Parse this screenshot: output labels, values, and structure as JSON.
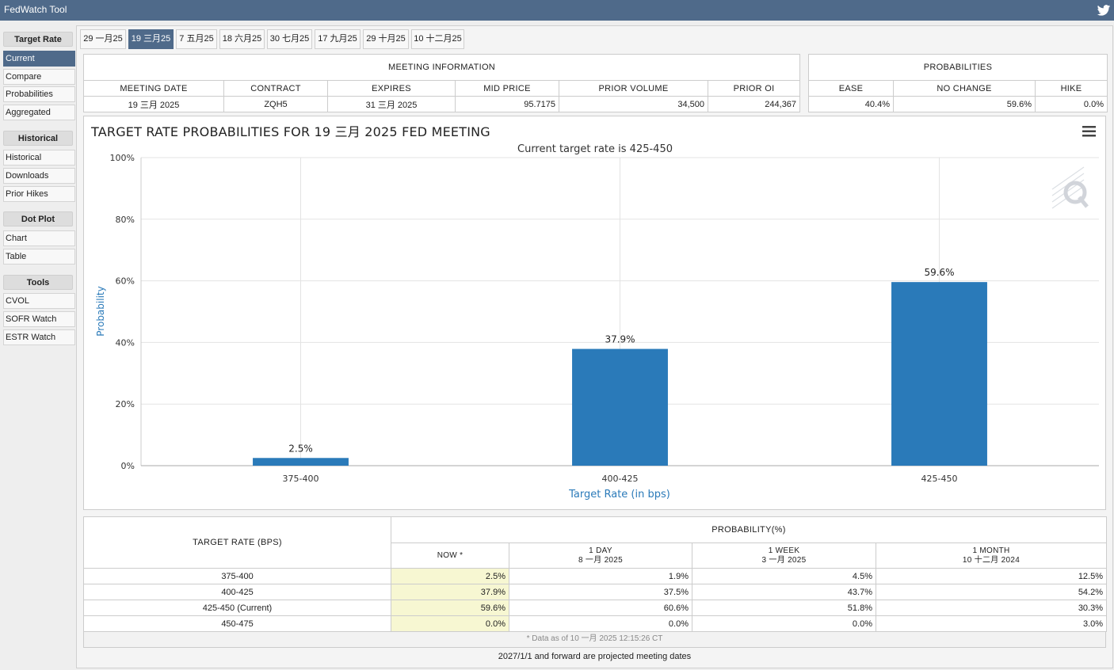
{
  "app": {
    "title": "FedWatch Tool"
  },
  "sidebar": {
    "groups": [
      {
        "title": "Target Rate",
        "items": [
          "Current",
          "Compare",
          "Probabilities",
          "Aggregated"
        ]
      },
      {
        "title": "Historical",
        "items": [
          "Historical",
          "Downloads",
          "Prior Hikes"
        ]
      },
      {
        "title": "Dot Plot",
        "items": [
          "Chart",
          "Table"
        ]
      },
      {
        "title": "Tools",
        "items": [
          "CVOL",
          "SOFR Watch",
          "ESTR Watch"
        ]
      }
    ],
    "active_item": "Current"
  },
  "tabs": [
    "29 一月25",
    "19 三月25",
    "7 五月25",
    "18 六月25",
    "30 七月25",
    "17 九月25",
    "29 十月25",
    "10 十二月25"
  ],
  "active_tab": "19 三月25",
  "meeting_info": {
    "title": "MEETING INFORMATION",
    "columns": [
      "MEETING DATE",
      "CONTRACT",
      "EXPIRES",
      "MID PRICE",
      "PRIOR VOLUME",
      "PRIOR OI"
    ],
    "values": [
      "19 三月 2025",
      "ZQH5",
      "31 三月 2025",
      "95.7175",
      "34,500",
      "244,367"
    ]
  },
  "probabilities": {
    "title": "PROBABILITIES",
    "columns": [
      "EASE",
      "NO CHANGE",
      "HIKE"
    ],
    "values": [
      "40.4%",
      "59.6%",
      "0.0%"
    ]
  },
  "chart": {
    "title": "TARGET RATE PROBABILITIES FOR 19 三月 2025 FED MEETING",
    "subtitle": "Current target rate is 425-450"
  },
  "chart_data": {
    "type": "bar",
    "title": "TARGET RATE PROBABILITIES FOR 19 三月 2025 FED MEETING",
    "subtitle": "Current target rate is 425-450",
    "categories": [
      "375-400",
      "400-425",
      "425-450"
    ],
    "values": [
      2.5,
      37.9,
      59.6
    ],
    "data_labels": [
      "2.5%",
      "37.9%",
      "59.6%"
    ],
    "xlabel": "Target Rate (in bps)",
    "ylabel": "Probability",
    "ylim": [
      0,
      100
    ],
    "yticks": [
      "0%",
      "20%",
      "40%",
      "60%",
      "80%",
      "100%"
    ],
    "ytick_values": [
      0,
      20,
      40,
      60,
      80,
      100
    ],
    "grid": true,
    "bar_color": "#2a7ab9"
  },
  "prob_table": {
    "row_header": "TARGET RATE (BPS)",
    "group_header": "PROBABILITY(%)",
    "columns": [
      {
        "line1": "NOW *",
        "line2": ""
      },
      {
        "line1": "1 DAY",
        "line2": "8 一月 2025"
      },
      {
        "line1": "1 WEEK",
        "line2": "3 一月 2025"
      },
      {
        "line1": "1 MONTH",
        "line2": "10 十二月 2024"
      }
    ],
    "rows": [
      {
        "rate": "375-400",
        "values": [
          "2.5%",
          "1.9%",
          "4.5%",
          "12.5%"
        ]
      },
      {
        "rate": "400-425",
        "values": [
          "37.9%",
          "37.5%",
          "43.7%",
          "54.2%"
        ]
      },
      {
        "rate": "425-450 (Current)",
        "values": [
          "59.6%",
          "60.6%",
          "51.8%",
          "30.3%"
        ]
      },
      {
        "rate": "450-475",
        "values": [
          "0.0%",
          "0.0%",
          "0.0%",
          "3.0%"
        ]
      }
    ],
    "footnote": "* Data as of 10 一月 2025 12:15:26 CT"
  },
  "projected_note": "2027/1/1 and forward are projected meeting dates",
  "colors": {
    "accent": "#4f6a8a",
    "bar": "#2a7ab9",
    "now_highlight": "#f7f7d2"
  },
  "icons": {
    "share": "twitter-icon",
    "chart_menu": "hamburger-menu-icon",
    "watermark": "q-logo-icon"
  }
}
